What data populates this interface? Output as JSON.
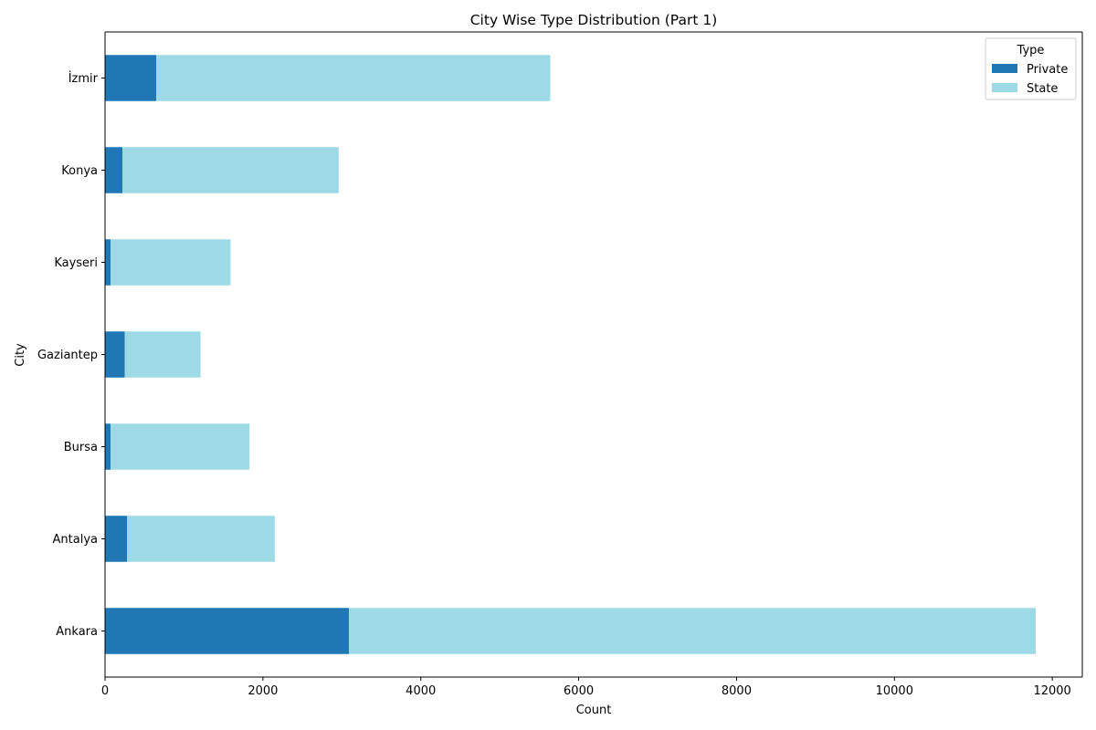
{
  "chart_data": {
    "type": "bar",
    "orientation": "horizontal",
    "stacked": true,
    "title": "City Wise Type Distribution (Part 1)",
    "xlabel": "Count",
    "ylabel": "City",
    "categories": [
      "Ankara",
      "Antalya",
      "Bursa",
      "Gaziantep",
      "Kayseri",
      "Konya",
      "İzmir"
    ],
    "series": [
      {
        "name": "Private",
        "color": "#1f77b4",
        "values": [
          3090,
          280,
          70,
          250,
          70,
          220,
          650
        ]
      },
      {
        "name": "State",
        "color": "#9edae5",
        "values": [
          8700,
          1870,
          1760,
          960,
          1520,
          2740,
          4990
        ]
      }
    ],
    "xlim": [
      0,
      12380
    ],
    "xticks": [
      0,
      2000,
      4000,
      6000,
      8000,
      10000,
      12000
    ],
    "grid": false,
    "legend": {
      "title": "Type",
      "position": "top-right"
    }
  }
}
